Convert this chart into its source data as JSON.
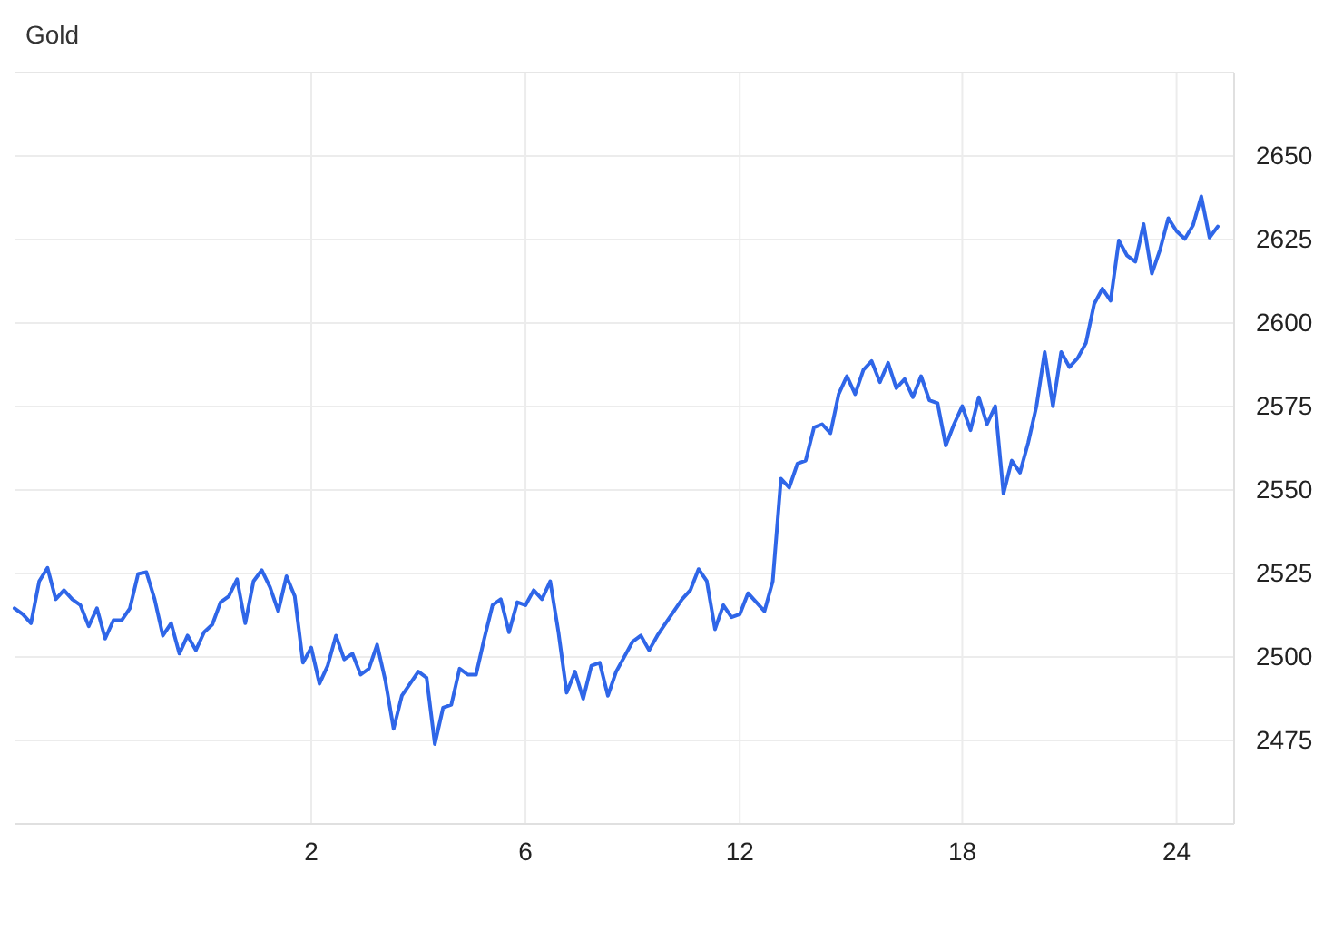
{
  "chart_data": {
    "type": "line",
    "title": "Gold",
    "categories": [
      null,
      null,
      null,
      null,
      null,
      null,
      null,
      null,
      null,
      null,
      null,
      null,
      null,
      null,
      null,
      null,
      null,
      null,
      null,
      null,
      null,
      null,
      null,
      null,
      null,
      null,
      null,
      null,
      null,
      null,
      null,
      null,
      null,
      null,
      null,
      null,
      "2",
      null,
      null,
      null,
      null,
      null,
      null,
      null,
      null,
      null,
      null,
      null,
      null,
      null,
      null,
      null,
      null,
      null,
      null,
      null,
      null,
      null,
      null,
      null,
      null,
      null,
      "6",
      null,
      null,
      null,
      null,
      null,
      null,
      null,
      null,
      null,
      null,
      null,
      null,
      null,
      null,
      null,
      null,
      null,
      null,
      null,
      null,
      null,
      null,
      null,
      null,
      null,
      "12",
      null,
      null,
      null,
      null,
      null,
      null,
      null,
      null,
      null,
      null,
      null,
      null,
      null,
      null,
      null,
      null,
      null,
      null,
      null,
      null,
      null,
      null,
      null,
      null,
      null,
      null,
      "18",
      null,
      null,
      null,
      null,
      null,
      null,
      null,
      null,
      null,
      null,
      null,
      null,
      null,
      null,
      null,
      null,
      null,
      null,
      null,
      null,
      null,
      null,
      null,
      null,
      null,
      "24",
      null,
      null,
      null,
      null,
      null
    ],
    "series": [
      {
        "color": "#2f66e8",
        "values": [
          2514.6,
          2512.8,
          2510.1,
          2522.7,
          2526.7,
          2517.3,
          2520,
          2517.3,
          2515.5,
          2509.2,
          2514.6,
          2505.5,
          2511,
          2511,
          2514.6,
          2524.9,
          2525.4,
          2517.3,
          2506.4,
          2510.1,
          2501,
          2506.4,
          2502,
          2507.4,
          2509.7,
          2516.4,
          2518.2,
          2523.3,
          2510.1,
          2522.7,
          2526,
          2520.9,
          2513.7,
          2524.2,
          2518.2,
          2498.3,
          2502.8,
          2492,
          2497.4,
          2506.4,
          2499.3,
          2501,
          2494.7,
          2496.5,
          2503.7,
          2492.9,
          2478.5,
          2488.4,
          2492,
          2495.6,
          2493.8,
          2473.9,
          2484.8,
          2485.7,
          2496.5,
          2494.7,
          2494.7,
          2505.5,
          2515.5,
          2517.3,
          2507.4,
          2516.4,
          2515.5,
          2520,
          2517.3,
          2522.7,
          2507.4,
          2489.3,
          2495.6,
          2487.5,
          2497.4,
          2498.3,
          2488.4,
          2495.6,
          2500.1,
          2504.6,
          2506.4,
          2502,
          2506.4,
          2510.1,
          2513.7,
          2517.3,
          2520,
          2526.3,
          2522.7,
          2508.3,
          2515.5,
          2511.9,
          2512.8,
          2519.1,
          2516.4,
          2513.7,
          2522.7,
          2553.4,
          2550.7,
          2557.9,
          2558.8,
          2568.7,
          2569.7,
          2567,
          2578.7,
          2584.1,
          2578.7,
          2586,
          2588.6,
          2582.3,
          2588.1,
          2580.5,
          2583.2,
          2577.8,
          2584.1,
          2576.9,
          2576,
          2563.3,
          2569.7,
          2575.1,
          2567.9,
          2577.8,
          2569.7,
          2575.1,
          2548.9,
          2558.8,
          2555.2,
          2564.2,
          2575.1,
          2591.3,
          2575.1,
          2591.3,
          2586.8,
          2589.5,
          2594,
          2605.7,
          2610.3,
          2606.7,
          2624.7,
          2620.2,
          2618.4,
          2629.6,
          2614.8,
          2622,
          2631.4,
          2627.5,
          2625.2,
          2629.3,
          2637.9,
          2625.6,
          2628.9
        ]
      }
    ],
    "ylim": [
      2450,
      2675
    ],
    "yticks": [
      2475,
      2500,
      2525,
      2550,
      2575,
      2600,
      2625,
      2650
    ],
    "grid": true,
    "line_style": "solid",
    "marker": "none"
  }
}
